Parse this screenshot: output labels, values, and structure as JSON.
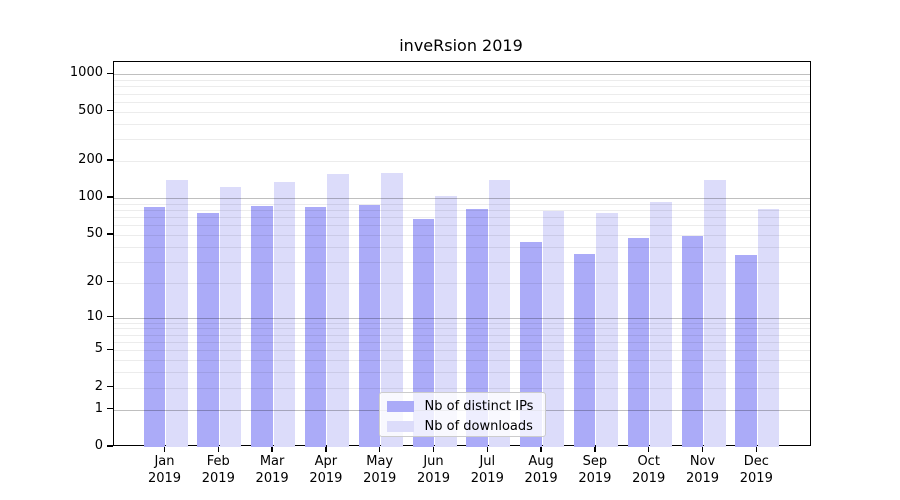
{
  "title": "inveRsion 2019",
  "colors": {
    "distinct_ips": "#ababf8",
    "downloads": "#dcdcfa",
    "grid_major": "#bfbfbf",
    "grid_minor": "#ececec",
    "axis": "#000000",
    "legend_border": "#cccccc"
  },
  "legend": {
    "items": [
      {
        "label": "Nb of distinct IPs",
        "color_key": "distinct_ips"
      },
      {
        "label": "Nb of downloads",
        "color_key": "downloads"
      }
    ]
  },
  "y_axis": {
    "tick_labels": [
      "0",
      "1",
      "2",
      "5",
      "10",
      "20",
      "50",
      "100",
      "200",
      "500",
      "1000"
    ]
  },
  "x_axis": {
    "tick_labels": [
      "Jan 2019",
      "Feb 2019",
      "Mar 2019",
      "Apr 2019",
      "May 2019",
      "Jun 2019",
      "Jul 2019",
      "Aug 2019",
      "Sep 2019",
      "Oct 2019",
      "Nov 2019",
      "Dec 2019"
    ]
  },
  "chart_data": {
    "type": "bar",
    "title": "inveRsion 2019",
    "categories": [
      "Jan 2019",
      "Feb 2019",
      "Mar 2019",
      "Apr 2019",
      "May 2019",
      "Jun 2019",
      "Jul 2019",
      "Aug 2019",
      "Sep 2019",
      "Oct 2019",
      "Nov 2019",
      "Dec 2019"
    ],
    "series": [
      {
        "name": "Nb of distinct IPs",
        "color": "#ababf8",
        "values": [
          85,
          75,
          86,
          84,
          88,
          68,
          82,
          44,
          35,
          47,
          49,
          34
        ]
      },
      {
        "name": "Nb of downloads",
        "color": "#dcdcfa",
        "values": [
          141,
          124,
          136,
          157,
          161,
          104,
          139,
          79,
          75,
          93,
          141,
          82
        ]
      }
    ],
    "xlabel": "",
    "ylabel": "",
    "yscale": "log1p",
    "yticks": [
      0,
      1,
      2,
      5,
      10,
      20,
      50,
      100,
      200,
      500,
      1000
    ],
    "ylim": [
      0,
      1260
    ],
    "grid": true,
    "grid_major_at": [
      1,
      10,
      100,
      1000
    ],
    "legend_position": "lower center"
  }
}
